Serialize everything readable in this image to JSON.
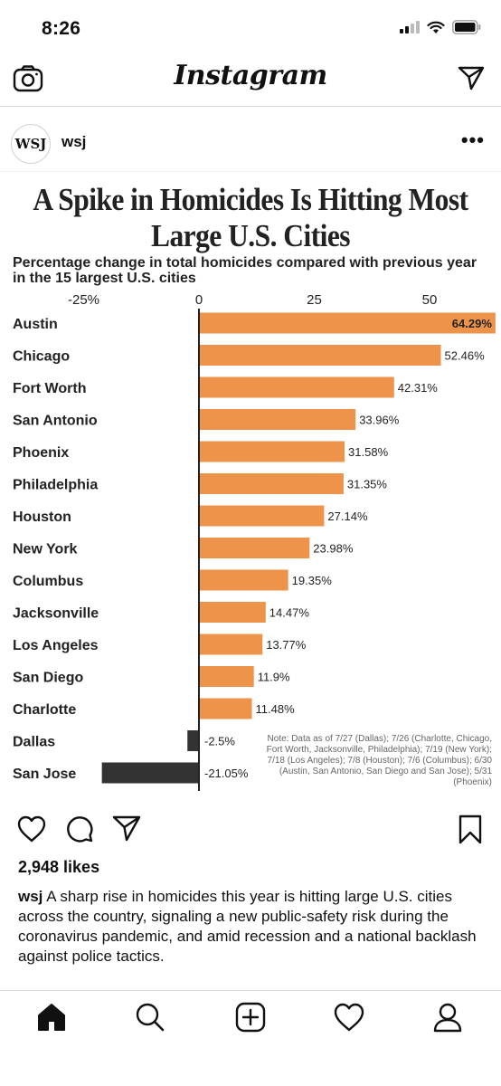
{
  "status_bar": {
    "time": "8:26"
  },
  "app_header": {
    "logo": "Instagram"
  },
  "post": {
    "avatar_text": "WSJ",
    "username": "wsj",
    "more_label": "•••",
    "likes": "2,948 likes",
    "caption_user": "wsj",
    "caption_text": " A sharp rise in homicides this year is hitting large U.S. cities across the country, signaling a new public-safety risk during the coronavirus pandemic, and amid recession and a national backlash against police tactics."
  },
  "colors": {
    "positive_bar": "#EE944A",
    "negative_bar": "#333333",
    "accent_text": "#111111"
  },
  "chart_data": {
    "type": "bar",
    "orientation": "horizontal",
    "title": "A Spike in Homicides Is Hitting Most Large U.S. Cities",
    "subtitle": "Percentage change in total homicides compared with previous year in the 15 largest U.S. cities",
    "xlim": [
      -25,
      64.29
    ],
    "x_ticks": [
      "-25%",
      "0",
      "25",
      "50"
    ],
    "x_tick_values": [
      -25,
      0,
      25,
      50
    ],
    "categories": [
      "Austin",
      "Chicago",
      "Fort Worth",
      "San Antonio",
      "Phoenix",
      "Philadelphia",
      "Houston",
      "New York",
      "Columbus",
      "Jacksonville",
      "Los Angeles",
      "San Diego",
      "Charlotte",
      "Dallas",
      "San Jose"
    ],
    "values": [
      64.29,
      52.46,
      42.31,
      33.96,
      31.58,
      31.35,
      27.14,
      23.98,
      19.35,
      14.47,
      13.77,
      11.9,
      11.48,
      -2.5,
      -21.05
    ],
    "labels": [
      "64.29%",
      "52.46%",
      "42.31%",
      "33.96%",
      "31.58%",
      "31.35%",
      "27.14%",
      "23.98%",
      "19.35%",
      "14.47%",
      "13.77%",
      "11.9%",
      "11.48%",
      "-2.5%",
      "-21.05%"
    ],
    "note": "Note: Data as of 7/27 (Dallas); 7/26 (Charlotte, Chicago, Fort Worth, Jacksonville, Philadelphia); 7/19 (New York); 7/18 (Los Angeles); 7/8 (Houston); 7/6 (Columbus); 6/30 (Austin, San Antonio, San Diego and San Jose); 5/31 (Phoenix)"
  },
  "icons": {
    "status": [
      "signal-icon",
      "wifi-icon",
      "battery-icon"
    ],
    "header": [
      "camera-icon",
      "direct-message-icon"
    ],
    "actions": [
      "like-icon",
      "comment-icon",
      "share-icon",
      "bookmark-icon"
    ],
    "nav": [
      "home-icon",
      "search-icon",
      "new-post-icon",
      "activity-icon",
      "profile-icon"
    ]
  }
}
